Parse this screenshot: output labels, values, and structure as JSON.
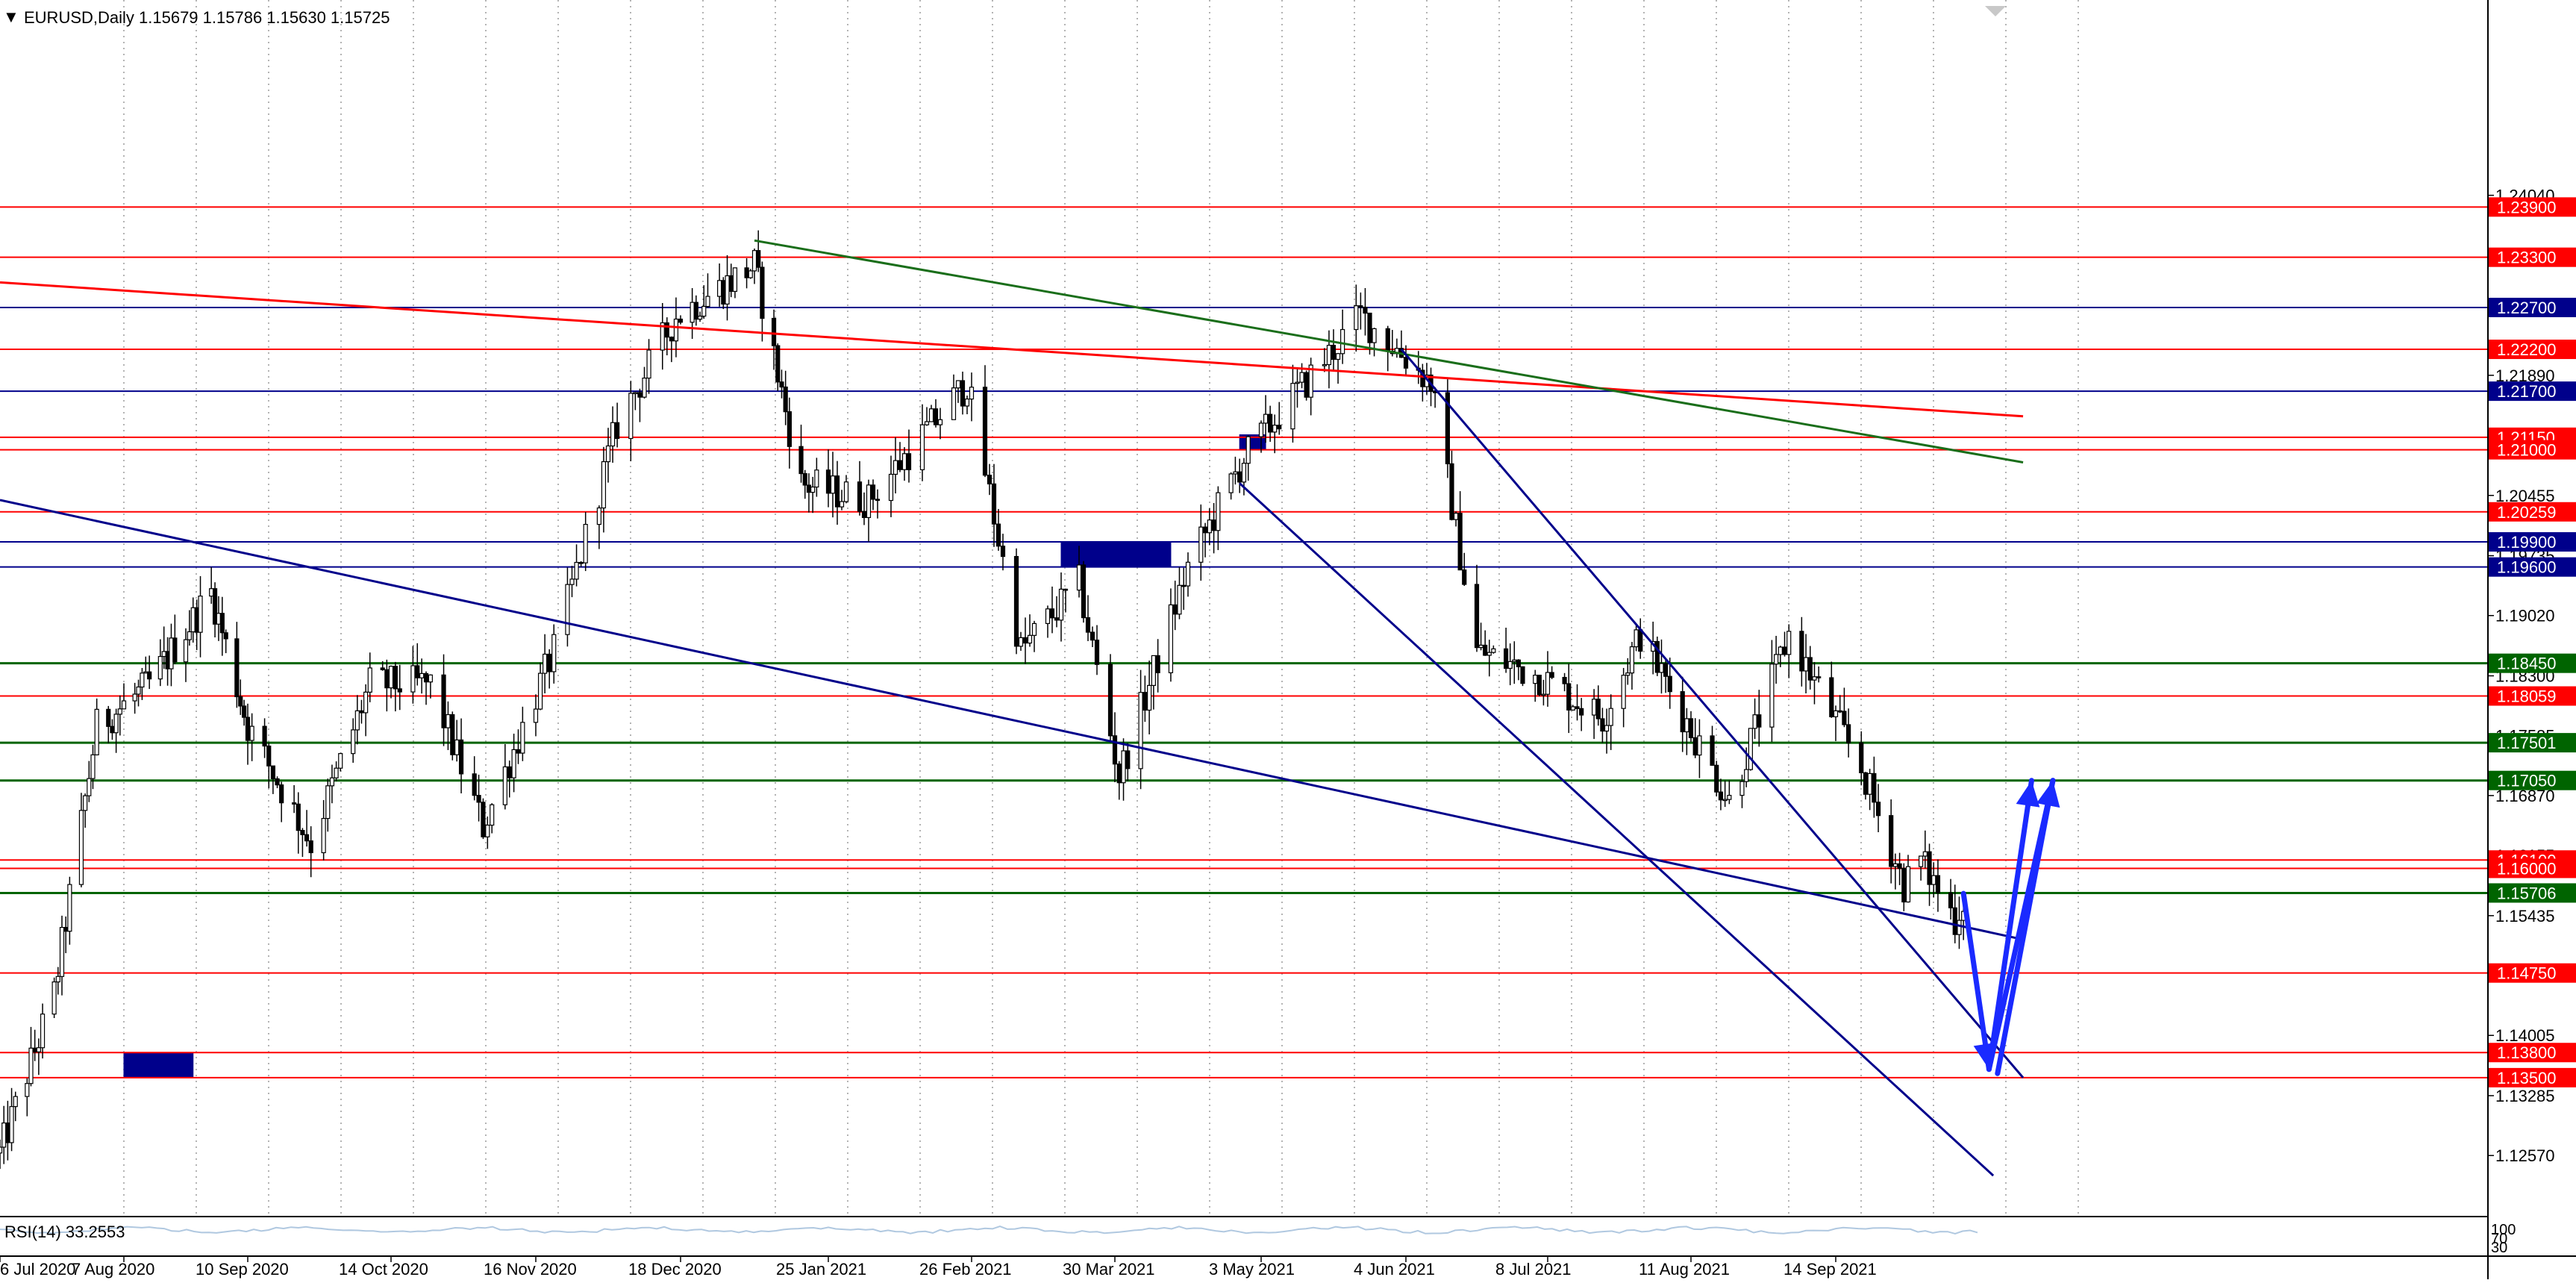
{
  "header": {
    "menu_glyph": "▼",
    "title": "EURUSD,Daily  1.15679 1.15786 1.15630 1.15725"
  },
  "rsi_label": "RSI(14) 33.2553",
  "rsi_axis": [
    "100",
    "70",
    "30"
  ],
  "colors": {
    "red_level": "#ff0000",
    "blue_level": "#00008b",
    "green_level": "#006400",
    "green_trend": "#1a6e1a",
    "arrow": "#1a2aff",
    "candle": "#000000"
  },
  "chart_data": {
    "type": "candlestick",
    "symbol": "EURUSD",
    "timeframe": "Daily",
    "ylim": [
      1.1207,
      1.2418
    ],
    "x_ticks": [
      "6 Jul 2020",
      "7 Aug 2020",
      "10 Sep 2020",
      "14 Oct 2020",
      "16 Nov 2020",
      "18 Dec 2020",
      "25 Jan 2021",
      "26 Feb 2021",
      "30 Mar 2021",
      "3 May 2021",
      "4 Jun 2021",
      "8 Jul 2021",
      "11 Aug 2021",
      "14 Sep 2021"
    ],
    "y_ticks": [
      "1.24040",
      "1.23320",
      "1.21890",
      "1.21170",
      "1.20455",
      "1.19735",
      "1.19020",
      "1.18300",
      "1.17585",
      "1.16870",
      "1.16155",
      "1.15435",
      "1.14005",
      "1.13285",
      "1.12570"
    ],
    "anchors": [
      [
        "2020-07-06",
        1.126
      ],
      [
        "2020-07-20",
        1.145
      ],
      [
        "2020-07-31",
        1.177
      ],
      [
        "2020-08-14",
        1.182
      ],
      [
        "2020-08-31",
        1.193
      ],
      [
        "2020-09-10",
        1.177
      ],
      [
        "2020-09-25",
        1.163
      ],
      [
        "2020-10-09",
        1.182
      ],
      [
        "2020-10-23",
        1.182
      ],
      [
        "2020-11-04",
        1.165
      ],
      [
        "2020-11-20",
        1.186
      ],
      [
        "2020-12-04",
        1.213
      ],
      [
        "2020-12-17",
        1.226
      ],
      [
        "2021-01-06",
        1.232
      ],
      [
        "2021-01-18",
        1.206
      ],
      [
        "2021-02-03",
        1.204
      ],
      [
        "2021-02-25",
        1.218
      ],
      [
        "2021-03-09",
        1.186
      ],
      [
        "2021-03-22",
        1.194
      ],
      [
        "2021-03-31",
        1.171
      ],
      [
        "2021-04-16",
        1.196
      ],
      [
        "2021-04-29",
        1.209
      ],
      [
        "2021-05-25",
        1.226
      ],
      [
        "2021-06-10",
        1.218
      ],
      [
        "2021-06-21",
        1.186
      ],
      [
        "2021-07-06",
        1.183
      ],
      [
        "2021-07-21",
        1.178
      ],
      [
        "2021-07-30",
        1.188
      ],
      [
        "2021-08-20",
        1.168
      ],
      [
        "2021-09-03",
        1.188
      ],
      [
        "2021-09-20",
        1.172
      ],
      [
        "2021-09-30",
        1.158
      ],
      [
        "2021-10-04",
        1.161
      ],
      [
        "2021-10-12",
        1.154
      ],
      [
        "2021-10-15",
        1.1573
      ]
    ],
    "levels": [
      {
        "price": 1.239,
        "label": "1.23900",
        "color": "red"
      },
      {
        "price": 1.233,
        "label": "1.23300",
        "color": "red"
      },
      {
        "price": 1.227,
        "label": "1.22700",
        "color": "blue"
      },
      {
        "price": 1.222,
        "label": "1.22200",
        "color": "red"
      },
      {
        "price": 1.217,
        "label": "1.21700",
        "color": "blue"
      },
      {
        "price": 1.2115,
        "label": "1.21150",
        "color": "red"
      },
      {
        "price": 1.21,
        "label": "1.21000",
        "color": "red"
      },
      {
        "price": 1.20259,
        "label": "1.20259",
        "color": "red"
      },
      {
        "price": 1.199,
        "label": "1.19900",
        "color": "blue"
      },
      {
        "price": 1.196,
        "label": "1.19600",
        "color": "blue"
      },
      {
        "price": 1.1845,
        "label": "1.18450",
        "color": "green"
      },
      {
        "price": 1.18059,
        "label": "1.18059",
        "color": "red"
      },
      {
        "price": 1.17501,
        "label": "1.17501",
        "color": "green"
      },
      {
        "price": 1.1705,
        "label": "1.17050",
        "color": "green"
      },
      {
        "price": 1.161,
        "label": "1.16100",
        "color": "red"
      },
      {
        "price": 1.16,
        "label": "1.16000",
        "color": "red"
      },
      {
        "price": 1.15706,
        "label": "1.15706",
        "color": "green"
      },
      {
        "price": 1.1475,
        "label": "1.14750",
        "color": "red"
      },
      {
        "price": 1.138,
        "label": "1.13800",
        "color": "red"
      },
      {
        "price": 1.135,
        "label": "1.13500",
        "color": "red"
      }
    ],
    "trendlines": [
      {
        "color": "red",
        "from": [
          "2020-07-06",
          1.23
        ],
        "to": [
          "2021-10-28",
          1.214
        ]
      },
      {
        "color": "green_trend",
        "from": [
          "2021-01-06",
          1.235
        ],
        "to": [
          "2021-10-28",
          1.2085
        ]
      },
      {
        "color": "blue",
        "from": [
          "2020-07-06",
          1.204
        ],
        "to": [
          "2021-10-28",
          1.1515
        ]
      },
      {
        "color": "blue",
        "from": [
          "2021-04-28",
          1.206
        ],
        "to": [
          "2021-10-21",
          1.1233
        ]
      },
      {
        "color": "blue",
        "from": [
          "2021-06-03",
          1.222
        ],
        "to": [
          "2021-10-28",
          1.135
        ]
      }
    ],
    "zones": [
      {
        "from": "2020-08-07",
        "to": "2020-08-26",
        "p_top": 1.138,
        "p_bottom": 1.135
      },
      {
        "from": "2021-03-18",
        "to": "2021-04-12",
        "p_top": 1.199,
        "p_bottom": 1.196
      },
      {
        "from": "2021-04-28",
        "to": "2021-05-04",
        "p_top": 1.2118,
        "p_bottom": 1.21
      }
    ],
    "projection": [
      [
        "2021-10-14",
        1.157
      ],
      [
        "2021-10-20",
        1.136
      ],
      [
        "2021-10-30",
        1.1705
      ],
      [
        "2021-10-22",
        1.1355
      ],
      [
        "2021-11-04",
        1.1705
      ]
    ],
    "rsi_value": 33.2553
  }
}
